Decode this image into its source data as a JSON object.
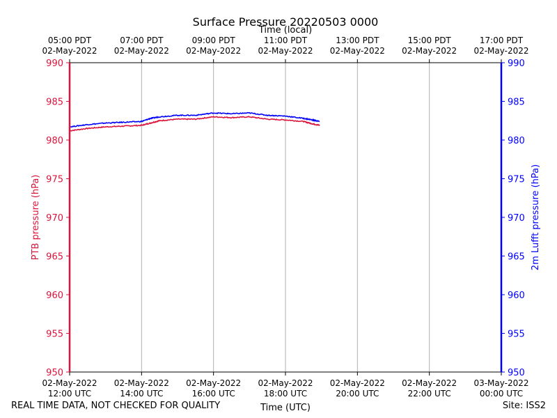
{
  "chart_data": {
    "type": "line",
    "title": "Surface Pressure 20220503 0000",
    "top_axis_label": "Time (local)",
    "xlabel": "Time (UTC)",
    "ylabel_left": "PTB pressure (hPa)",
    "ylabel_right": "2m Lufft pressure (hPa)",
    "ylim": [
      950,
      990
    ],
    "yticks": [
      950,
      955,
      960,
      965,
      970,
      975,
      980,
      985,
      990
    ],
    "xlim_hours": [
      0,
      12
    ],
    "xticks": [
      {
        "hour": 0,
        "utc_date": "02-May-2022",
        "utc_time": "12:00 UTC",
        "local_time": "05:00 PDT",
        "local_date": "02-May-2022"
      },
      {
        "hour": 2,
        "utc_date": "02-May-2022",
        "utc_time": "14:00 UTC",
        "local_time": "07:00 PDT",
        "local_date": "02-May-2022"
      },
      {
        "hour": 4,
        "utc_date": "02-May-2022",
        "utc_time": "16:00 UTC",
        "local_time": "09:00 PDT",
        "local_date": "02-May-2022"
      },
      {
        "hour": 6,
        "utc_date": "02-May-2022",
        "utc_time": "18:00 UTC",
        "local_time": "11:00 PDT",
        "local_date": "02-May-2022"
      },
      {
        "hour": 8,
        "utc_date": "02-May-2022",
        "utc_time": "20:00 UTC",
        "local_time": "13:00 PDT",
        "local_date": "02-May-2022"
      },
      {
        "hour": 10,
        "utc_date": "02-May-2022",
        "utc_time": "22:00 UTC",
        "local_time": "15:00 PDT",
        "local_date": "02-May-2022"
      },
      {
        "hour": 12,
        "utc_date": "03-May-2022",
        "utc_time": "00:00 UTC",
        "local_time": "17:00 PDT",
        "local_date": "02-May-2022"
      }
    ],
    "grid": "vertical",
    "series": [
      {
        "name": "PTB pressure",
        "axis": "left",
        "color": "#dc143c",
        "x": [
          0,
          0.5,
          1,
          1.5,
          2,
          2.25,
          2.5,
          3,
          3.5,
          4,
          4.5,
          5,
          5.5,
          6,
          6.5,
          6.75,
          6.95
        ],
        "y": [
          981.2,
          981.5,
          981.7,
          981.8,
          981.9,
          982.2,
          982.5,
          982.7,
          982.7,
          983.0,
          982.9,
          983.0,
          982.7,
          982.6,
          982.4,
          982.1,
          981.9
        ]
      },
      {
        "name": "2m Lufft pressure",
        "axis": "right",
        "color": "#0000ff",
        "x": [
          0,
          0.5,
          1,
          1.5,
          2,
          2.25,
          2.5,
          3,
          3.5,
          4,
          4.5,
          5,
          5.5,
          6,
          6.5,
          6.75,
          6.95
        ],
        "y": [
          981.7,
          982.0,
          982.2,
          982.3,
          982.4,
          982.8,
          983.0,
          983.2,
          983.2,
          983.5,
          983.4,
          983.5,
          983.2,
          983.1,
          982.8,
          982.6,
          982.4
        ]
      }
    ]
  },
  "footer": {
    "left_note": "REAL TIME DATA, NOT CHECKED FOR QUALITY",
    "site": "Site: ISS2"
  }
}
